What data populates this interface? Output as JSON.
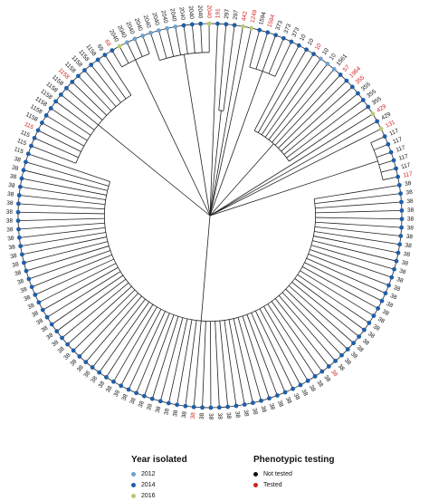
{
  "tree": {
    "leaves": [
      {
        "label": "2040",
        "color": "#6ea0cc",
        "tested": false
      },
      {
        "label": "2040",
        "color": "#6ea0cc",
        "tested": false
      },
      {
        "label": "2040",
        "color": "#6ea0cc",
        "tested": false
      },
      {
        "label": "2040",
        "color": "#6ea0cc",
        "tested": false
      },
      {
        "label": "2040",
        "color": "#1f5fa8",
        "tested": false
      },
      {
        "label": "2040",
        "color": "#1f5fa8",
        "tested": false
      },
      {
        "label": "2040",
        "color": "#1f5fa8",
        "tested": false
      },
      {
        "label": "2040",
        "color": "#b5cc7a",
        "tested": true
      },
      {
        "label": "191",
        "color": "#1f5fa8",
        "tested": true
      },
      {
        "label": "297",
        "color": "#1f5fa8",
        "tested": false
      },
      {
        "label": "297",
        "color": "#1f5fa8",
        "tested": false
      },
      {
        "label": "442",
        "color": "#b5cc7a",
        "tested": true
      },
      {
        "label": "1249",
        "color": "#b5cc7a",
        "tested": true
      },
      {
        "label": "1594",
        "color": "#1f5fa8",
        "tested": false
      },
      {
        "label": "1594",
        "color": "#1f5fa8",
        "tested": true
      },
      {
        "label": "373",
        "color": "#1f5fa8",
        "tested": false
      },
      {
        "label": "373",
        "color": "#1f5fa8",
        "tested": false
      },
      {
        "label": "373",
        "color": "#1f5fa8",
        "tested": false
      },
      {
        "label": "10",
        "color": "#1f5fa8",
        "tested": false
      },
      {
        "label": "10",
        "color": "#1f5fa8",
        "tested": false
      },
      {
        "label": "10",
        "color": "#1f5fa8",
        "tested": true
      },
      {
        "label": "10",
        "color": "#6ea0cc",
        "tested": false
      },
      {
        "label": "10",
        "color": "#6ea0cc",
        "tested": false
      },
      {
        "label": "1561",
        "color": "#6ea0cc",
        "tested": false
      },
      {
        "label": "57",
        "color": "#1f5fa8",
        "tested": true
      },
      {
        "label": "1964",
        "color": "#1f5fa8",
        "tested": true
      },
      {
        "label": "355",
        "color": "#1f5fa8",
        "tested": true
      },
      {
        "label": "355",
        "color": "#1f5fa8",
        "tested": false
      },
      {
        "label": "355",
        "color": "#1f5fa8",
        "tested": false
      },
      {
        "label": "355",
        "color": "#1f5fa8",
        "tested": false
      },
      {
        "label": "429",
        "color": "#b5cc7a",
        "tested": true
      },
      {
        "label": "429",
        "color": "#1f5fa8",
        "tested": false
      },
      {
        "label": "131",
        "color": "#b5cc7a",
        "tested": true
      },
      {
        "label": "117",
        "color": "#1f5fa8",
        "tested": false
      },
      {
        "label": "117",
        "color": "#1f5fa8",
        "tested": false
      },
      {
        "label": "117",
        "color": "#1f5fa8",
        "tested": false
      },
      {
        "label": "117",
        "color": "#1f5fa8",
        "tested": false
      },
      {
        "label": "117",
        "color": "#1f5fa8",
        "tested": false
      },
      {
        "label": "117",
        "color": "#1f5fa8",
        "tested": true
      },
      {
        "label": "38",
        "color": "#1f5fa8",
        "tested": false
      },
      {
        "label": "38",
        "color": "#1f5fa8",
        "tested": false
      },
      {
        "label": "38",
        "color": "#1f5fa8",
        "tested": false
      },
      {
        "label": "38",
        "color": "#1f5fa8",
        "tested": false
      },
      {
        "label": "38",
        "color": "#1f5fa8",
        "tested": false
      },
      {
        "label": "38",
        "color": "#1f5fa8",
        "tested": false
      },
      {
        "label": "38",
        "color": "#1f5fa8",
        "tested": false
      },
      {
        "label": "38",
        "color": "#1f5fa8",
        "tested": false
      },
      {
        "label": "38",
        "color": "#1f5fa8",
        "tested": false
      },
      {
        "label": "38",
        "color": "#1f5fa8",
        "tested": false
      },
      {
        "label": "38",
        "color": "#1f5fa8",
        "tested": false
      },
      {
        "label": "38",
        "color": "#1f5fa8",
        "tested": false
      },
      {
        "label": "38",
        "color": "#1f5fa8",
        "tested": false
      },
      {
        "label": "38",
        "color": "#1f5fa8",
        "tested": false
      },
      {
        "label": "38",
        "color": "#1f5fa8",
        "tested": false
      },
      {
        "label": "38",
        "color": "#1f5fa8",
        "tested": false
      },
      {
        "label": "38",
        "color": "#1f5fa8",
        "tested": false
      },
      {
        "label": "38",
        "color": "#1f5fa8",
        "tested": false
      },
      {
        "label": "38",
        "color": "#1f5fa8",
        "tested": false
      },
      {
        "label": "38",
        "color": "#1f5fa8",
        "tested": false
      },
      {
        "label": "38",
        "color": "#1f5fa8",
        "tested": false
      },
      {
        "label": "38",
        "color": "#1f5fa8",
        "tested": false
      },
      {
        "label": "38",
        "color": "#1f5fa8",
        "tested": false
      },
      {
        "label": "38",
        "color": "#1f5fa8",
        "tested": false
      },
      {
        "label": "38",
        "color": "#1f5fa8",
        "tested": true
      },
      {
        "label": "38",
        "color": "#1f5fa8",
        "tested": false
      },
      {
        "label": "38",
        "color": "#1f5fa8",
        "tested": false
      },
      {
        "label": "38",
        "color": "#1f5fa8",
        "tested": false
      },
      {
        "label": "38",
        "color": "#1f5fa8",
        "tested": false
      },
      {
        "label": "38",
        "color": "#1f5fa8",
        "tested": false
      },
      {
        "label": "38",
        "color": "#1f5fa8",
        "tested": false
      },
      {
        "label": "38",
        "color": "#1f5fa8",
        "tested": false
      },
      {
        "label": "38",
        "color": "#1f5fa8",
        "tested": false
      },
      {
        "label": "38",
        "color": "#1f5fa8",
        "tested": false
      },
      {
        "label": "38",
        "color": "#1f5fa8",
        "tested": false
      },
      {
        "label": "38",
        "color": "#1f5fa8",
        "tested": false
      },
      {
        "label": "38",
        "color": "#1f5fa8",
        "tested": false
      },
      {
        "label": "38",
        "color": "#1f5fa8",
        "tested": false
      },
      {
        "label": "38",
        "color": "#1f5fa8",
        "tested": false
      },
      {
        "label": "38",
        "color": "#1f5fa8",
        "tested": false
      },
      {
        "label": "38",
        "color": "#1f5fa8",
        "tested": false
      },
      {
        "label": "38",
        "color": "#1f5fa8",
        "tested": true
      },
      {
        "label": "38",
        "color": "#1f5fa8",
        "tested": false
      },
      {
        "label": "38",
        "color": "#1f5fa8",
        "tested": false
      },
      {
        "label": "38",
        "color": "#1f5fa8",
        "tested": false
      },
      {
        "label": "38",
        "color": "#1f5fa8",
        "tested": false
      },
      {
        "label": "38",
        "color": "#1f5fa8",
        "tested": false
      },
      {
        "label": "38",
        "color": "#1f5fa8",
        "tested": false
      },
      {
        "label": "38",
        "color": "#1f5fa8",
        "tested": false
      },
      {
        "label": "38",
        "color": "#1f5fa8",
        "tested": false
      },
      {
        "label": "38",
        "color": "#1f5fa8",
        "tested": false
      },
      {
        "label": "38",
        "color": "#1f5fa8",
        "tested": false
      },
      {
        "label": "38",
        "color": "#1f5fa8",
        "tested": false
      },
      {
        "label": "38",
        "color": "#1f5fa8",
        "tested": false
      },
      {
        "label": "38",
        "color": "#1f5fa8",
        "tested": false
      },
      {
        "label": "38",
        "color": "#1f5fa8",
        "tested": false
      },
      {
        "label": "38",
        "color": "#1f5fa8",
        "tested": false
      },
      {
        "label": "38",
        "color": "#1f5fa8",
        "tested": false
      },
      {
        "label": "38",
        "color": "#1f5fa8",
        "tested": false
      },
      {
        "label": "38",
        "color": "#1f5fa8",
        "tested": false
      },
      {
        "label": "38",
        "color": "#1f5fa8",
        "tested": false
      },
      {
        "label": "38",
        "color": "#1f5fa8",
        "tested": false
      },
      {
        "label": "38",
        "color": "#1f5fa8",
        "tested": false
      },
      {
        "label": "38",
        "color": "#1f5fa8",
        "tested": false
      },
      {
        "label": "38",
        "color": "#1f5fa8",
        "tested": false
      },
      {
        "label": "38",
        "color": "#1f5fa8",
        "tested": false
      },
      {
        "label": "38",
        "color": "#1f5fa8",
        "tested": false
      },
      {
        "label": "38",
        "color": "#1f5fa8",
        "tested": false
      },
      {
        "label": "38",
        "color": "#1f5fa8",
        "tested": false
      },
      {
        "label": "38",
        "color": "#1f5fa8",
        "tested": false
      },
      {
        "label": "38",
        "color": "#1f5fa8",
        "tested": false
      },
      {
        "label": "38",
        "color": "#1f5fa8",
        "tested": false
      },
      {
        "label": "38",
        "color": "#1f5fa8",
        "tested": false
      },
      {
        "label": "38",
        "color": "#1f5fa8",
        "tested": false
      },
      {
        "label": "38",
        "color": "#1f5fa8",
        "tested": false
      },
      {
        "label": "38",
        "color": "#1f5fa8",
        "tested": false
      },
      {
        "label": "38",
        "color": "#1f5fa8",
        "tested": false
      },
      {
        "label": "38",
        "color": "#1f5fa8",
        "tested": false
      },
      {
        "label": "38",
        "color": "#1f5fa8",
        "tested": false
      },
      {
        "label": "38",
        "color": "#1f5fa8",
        "tested": false
      },
      {
        "label": "38",
        "color": "#1f5fa8",
        "tested": false
      },
      {
        "label": "38",
        "color": "#1f5fa8",
        "tested": false
      },
      {
        "label": "115",
        "color": "#1f5fa8",
        "tested": false
      },
      {
        "label": "115",
        "color": "#1f5fa8",
        "tested": false
      },
      {
        "label": "115",
        "color": "#1f5fa8",
        "tested": false
      },
      {
        "label": "115",
        "color": "#1f5fa8",
        "tested": true
      },
      {
        "label": "1158",
        "color": "#1f5fa8",
        "tested": false
      },
      {
        "label": "1158",
        "color": "#1f5fa8",
        "tested": false
      },
      {
        "label": "1158",
        "color": "#1f5fa8",
        "tested": false
      },
      {
        "label": "1158",
        "color": "#1f5fa8",
        "tested": false
      },
      {
        "label": "1158",
        "color": "#1f5fa8",
        "tested": false
      },
      {
        "label": "1158",
        "color": "#1f5fa8",
        "tested": false
      },
      {
        "label": "1158",
        "color": "#1f5fa8",
        "tested": true
      },
      {
        "label": "1158",
        "color": "#1f5fa8",
        "tested": false
      },
      {
        "label": "1158",
        "color": "#1f5fa8",
        "tested": false
      },
      {
        "label": "1158",
        "color": "#1f5fa8",
        "tested": false
      },
      {
        "label": "1158",
        "color": "#1f5fa8",
        "tested": false
      },
      {
        "label": "69",
        "color": "#1f5fa8",
        "tested": false
      },
      {
        "label": "69",
        "color": "#1f5fa8",
        "tested": true
      },
      {
        "label": "2040",
        "color": "#b5cc7a",
        "tested": false
      },
      {
        "label": "2040",
        "color": "#6ea0cc",
        "tested": false
      },
      {
        "label": "2040",
        "color": "#6ea0cc",
        "tested": false
      },
      {
        "label": "2040",
        "color": "#6ea0cc",
        "tested": false
      }
    ],
    "clades": [
      {
        "start": 0,
        "end": 7,
        "depth": 0.85
      },
      {
        "start": 9,
        "end": 10,
        "depth": 0.55
      },
      {
        "start": 13,
        "end": 17,
        "depth": 0.8
      },
      {
        "start": 18,
        "end": 29,
        "depth": 0.5
      },
      {
        "start": 33,
        "end": 38,
        "depth": 0.92
      },
      {
        "start": 39,
        "end": 121,
        "depth": 0.55
      },
      {
        "start": 122,
        "end": 136,
        "depth": 0.75
      },
      {
        "start": 137,
        "end": 141,
        "depth": 0.9
      }
    ]
  },
  "legend": {
    "year_title": "Year isolated",
    "year_items": [
      {
        "label": "2012",
        "color": "#6ea0cc"
      },
      {
        "label": "2014",
        "color": "#1f5fa8"
      },
      {
        "label": "2016",
        "color": "#b5cc7a"
      }
    ],
    "pheno_title": "Phenotypic testing",
    "pheno_items": [
      {
        "label": "Not tested",
        "color": "#111111"
      },
      {
        "label": "Tested",
        "color": "#d42020"
      }
    ]
  }
}
